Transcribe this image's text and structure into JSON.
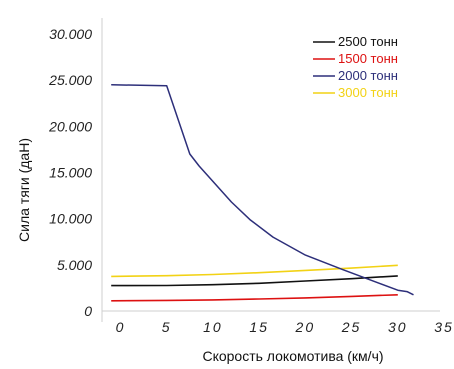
{
  "chart_data": {
    "type": "line",
    "title": "",
    "xlabel": "Скорость локомотива (км/ч)",
    "ylabel": "Сила тяги (даН)",
    "xlim": [
      -2,
      35
    ],
    "ylim": [
      0,
      30000
    ],
    "x_ticks": [
      {
        "value": 0,
        "label": "0"
      },
      {
        "value": 5,
        "label": "5"
      },
      {
        "value": 10,
        "label": "10"
      },
      {
        "value": 15,
        "label": "15"
      },
      {
        "value": 20,
        "label": "20"
      },
      {
        "value": 25,
        "label": "25"
      },
      {
        "value": 30,
        "label": "30"
      },
      {
        "value": 35,
        "label": "35"
      }
    ],
    "y_ticks": [
      {
        "value": 0,
        "label": "0"
      },
      {
        "value": 5000,
        "label": "5.000"
      },
      {
        "value": 10000,
        "label": "10.000"
      },
      {
        "value": 15000,
        "label": "15.000"
      },
      {
        "value": 20000,
        "label": "20.000"
      },
      {
        "value": 25000,
        "label": "25.000"
      },
      {
        "value": 30000,
        "label": "30.000"
      }
    ],
    "grid": false,
    "legend_position": "top-right",
    "series": [
      {
        "name": "2500 тонн",
        "color": "#111111",
        "x": [
          -1,
          5,
          10,
          15,
          20,
          25,
          30
        ],
        "y": [
          2750,
          2760,
          2850,
          3000,
          3250,
          3500,
          3800
        ]
      },
      {
        "name": "1500 тонн",
        "color": "#dd1111",
        "x": [
          -1,
          5,
          10,
          15,
          20,
          25,
          30
        ],
        "y": [
          1100,
          1150,
          1200,
          1300,
          1420,
          1580,
          1750
        ]
      },
      {
        "name": "2000 тонн",
        "color": "#2d2f7a",
        "x": [
          -1,
          5,
          7.5,
          8.5,
          12,
          14,
          16.5,
          20,
          24,
          28,
          30,
          31,
          31.7
        ],
        "y": [
          24500,
          24400,
          17000,
          15700,
          11800,
          9900,
          8000,
          6050,
          4500,
          3000,
          2250,
          2100,
          1750
        ]
      },
      {
        "name": "3000 тонн",
        "color": "#f2d215",
        "x": [
          -1,
          5,
          10,
          15,
          20,
          25,
          30
        ],
        "y": [
          3750,
          3820,
          3950,
          4150,
          4400,
          4650,
          4950
        ]
      }
    ]
  }
}
